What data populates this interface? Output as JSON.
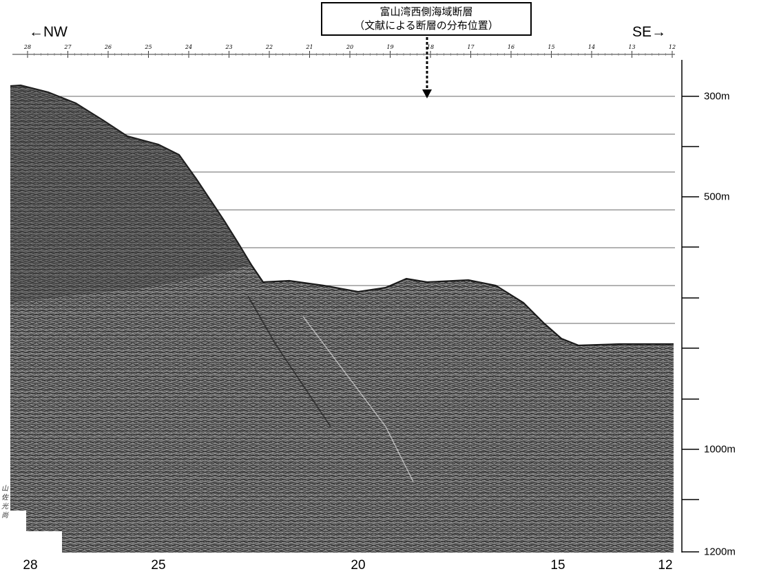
{
  "direction": {
    "left": "←NW",
    "right": "SE→"
  },
  "callout": {
    "line1": "富山湾西側海域断層",
    "line2": "（文献による断層の分布位置）"
  },
  "top_scale": [
    "28",
    "27",
    "26",
    "25",
    "24",
    "23",
    "22",
    "21",
    "20",
    "19",
    "18",
    "17",
    "16",
    "15",
    "14",
    "13",
    "12"
  ],
  "bottom_scale": [
    "28",
    "25",
    "20",
    "15",
    "12"
  ],
  "depth_labels": [
    "300m",
    "500m",
    "1000m",
    "1200m"
  ],
  "side_note": "山 佐 光 尚",
  "colors": {
    "seismic_dark": "#3a3a3a",
    "seismic_mid": "#7a7a7a",
    "grid_line": "#666666",
    "paper": "#ffffff"
  }
}
